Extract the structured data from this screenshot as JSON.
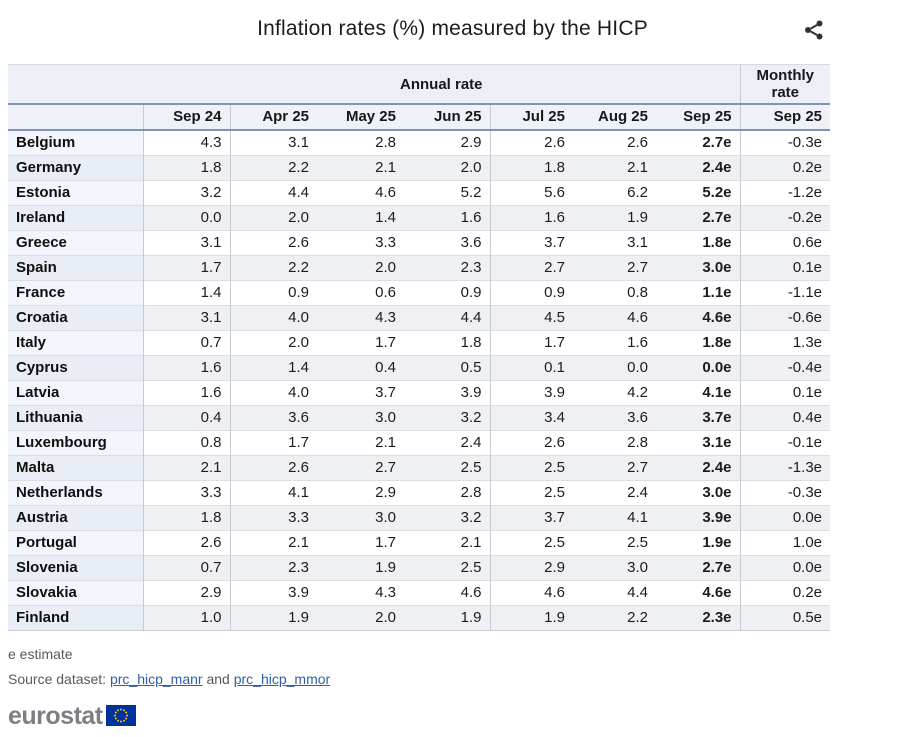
{
  "page_title": "Inflation rates (%) measured by the HICP",
  "icons": {
    "share": "share-icon",
    "eu_flag": "eu-flag-icon"
  },
  "chart_data": {
    "type": "table",
    "title": "Inflation rates (%) measured by the HICP",
    "group_headers": {
      "annual": "Annual rate",
      "monthly": "Monthly rate"
    },
    "annual_columns": [
      "Sep 24",
      "Apr 25",
      "May 25",
      "Jun 25",
      "Jul 25",
      "Aug 25",
      "Sep 25"
    ],
    "monthly_column": "Sep 25",
    "rows": [
      {
        "country": "Belgium",
        "annual": [
          "4.3",
          "3.1",
          "2.8",
          "2.9",
          "2.6",
          "2.6",
          "2.7e"
        ],
        "monthly": "-0.3e"
      },
      {
        "country": "Germany",
        "annual": [
          "1.8",
          "2.2",
          "2.1",
          "2.0",
          "1.8",
          "2.1",
          "2.4e"
        ],
        "monthly": "0.2e"
      },
      {
        "country": "Estonia",
        "annual": [
          "3.2",
          "4.4",
          "4.6",
          "5.2",
          "5.6",
          "6.2",
          "5.2e"
        ],
        "monthly": "-1.2e"
      },
      {
        "country": "Ireland",
        "annual": [
          "0.0",
          "2.0",
          "1.4",
          "1.6",
          "1.6",
          "1.9",
          "2.7e"
        ],
        "monthly": "-0.2e"
      },
      {
        "country": "Greece",
        "annual": [
          "3.1",
          "2.6",
          "3.3",
          "3.6",
          "3.7",
          "3.1",
          "1.8e"
        ],
        "monthly": "0.6e"
      },
      {
        "country": "Spain",
        "annual": [
          "1.7",
          "2.2",
          "2.0",
          "2.3",
          "2.7",
          "2.7",
          "3.0e"
        ],
        "monthly": "0.1e"
      },
      {
        "country": "France",
        "annual": [
          "1.4",
          "0.9",
          "0.6",
          "0.9",
          "0.9",
          "0.8",
          "1.1e"
        ],
        "monthly": "-1.1e"
      },
      {
        "country": "Croatia",
        "annual": [
          "3.1",
          "4.0",
          "4.3",
          "4.4",
          "4.5",
          "4.6",
          "4.6e"
        ],
        "monthly": "-0.6e"
      },
      {
        "country": "Italy",
        "annual": [
          "0.7",
          "2.0",
          "1.7",
          "1.8",
          "1.7",
          "1.6",
          "1.8e"
        ],
        "monthly": "1.3e"
      },
      {
        "country": "Cyprus",
        "annual": [
          "1.6",
          "1.4",
          "0.4",
          "0.5",
          "0.1",
          "0.0",
          "0.0e"
        ],
        "monthly": "-0.4e"
      },
      {
        "country": "Latvia",
        "annual": [
          "1.6",
          "4.0",
          "3.7",
          "3.9",
          "3.9",
          "4.2",
          "4.1e"
        ],
        "monthly": "0.1e"
      },
      {
        "country": "Lithuania",
        "annual": [
          "0.4",
          "3.6",
          "3.0",
          "3.2",
          "3.4",
          "3.6",
          "3.7e"
        ],
        "monthly": "0.4e"
      },
      {
        "country": "Luxembourg",
        "annual": [
          "0.8",
          "1.7",
          "2.1",
          "2.4",
          "2.6",
          "2.8",
          "3.1e"
        ],
        "monthly": "-0.1e"
      },
      {
        "country": "Malta",
        "annual": [
          "2.1",
          "2.6",
          "2.7",
          "2.5",
          "2.5",
          "2.7",
          "2.4e"
        ],
        "monthly": "-1.3e"
      },
      {
        "country": "Netherlands",
        "annual": [
          "3.3",
          "4.1",
          "2.9",
          "2.8",
          "2.5",
          "2.4",
          "3.0e"
        ],
        "monthly": "-0.3e"
      },
      {
        "country": "Austria",
        "annual": [
          "1.8",
          "3.3",
          "3.0",
          "3.2",
          "3.7",
          "4.1",
          "3.9e"
        ],
        "monthly": "0.0e"
      },
      {
        "country": "Portugal",
        "annual": [
          "2.6",
          "2.1",
          "1.7",
          "2.1",
          "2.5",
          "2.5",
          "1.9e"
        ],
        "monthly": "1.0e"
      },
      {
        "country": "Slovenia",
        "annual": [
          "0.7",
          "2.3",
          "1.9",
          "2.5",
          "2.9",
          "3.0",
          "2.7e"
        ],
        "monthly": "0.0e"
      },
      {
        "country": "Slovakia",
        "annual": [
          "2.9",
          "3.9",
          "4.3",
          "4.6",
          "4.6",
          "4.4",
          "4.6e"
        ],
        "monthly": "0.2e"
      },
      {
        "country": "Finland",
        "annual": [
          "1.0",
          "1.9",
          "2.0",
          "1.9",
          "1.9",
          "2.2",
          "2.3e"
        ],
        "monthly": "0.5e"
      }
    ]
  },
  "footnote": "e estimate",
  "source": {
    "prefix": "Source dataset: ",
    "link_1": "prc_hicp_manr",
    "separator": " and ",
    "link_2": "prc_hicp_mmor"
  },
  "logo": {
    "text": "eurostat"
  },
  "colors": {
    "rule_blue": "#8093b7",
    "header_bg": "#edeff6",
    "row_label_odd": "#f2f5fb",
    "row_label_even": "#e9edf5",
    "row_data_even": "#eff0f3",
    "link_blue": "#2d5fa9",
    "eu_blue": "#003399",
    "eu_star_yellow": "#ffcc00",
    "logo_gray": "#7c7f84"
  }
}
